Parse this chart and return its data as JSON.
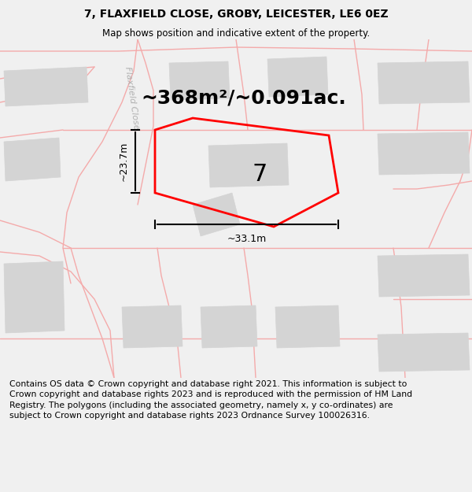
{
  "title": "7, FLAXFIELD CLOSE, GROBY, LEICESTER, LE6 0EZ",
  "subtitle": "Map shows position and indicative extent of the property.",
  "area_label": "~368m²/~0.091ac.",
  "dim_h": "~33.1m",
  "dim_v": "~23.7m",
  "plot_label": "7",
  "road_label": "Flaxfield Close",
  "copyright_text": "Contains OS data © Crown copyright and database right 2021. This information is subject to Crown copyright and database rights 2023 and is reproduced with the permission of HM Land Registry. The polygons (including the associated geometry, namely x, y co-ordinates) are subject to Crown copyright and database rights 2023 Ordnance Survey 100026316.",
  "bg_color": "#f0f0f0",
  "map_bg": "#ffffff",
  "plot_color": "#ff0000",
  "building_fill": "#d4d4d4",
  "building_edge": "#d4d4d4",
  "road_outline_color": "#f4aaaa",
  "title_fontsize": 10,
  "subtitle_fontsize": 8.5,
  "copyright_fontsize": 7.8,
  "area_fontsize": 18,
  "plot_label_fontsize": 22,
  "dim_fontsize": 9,
  "road_label_fontsize": 8
}
